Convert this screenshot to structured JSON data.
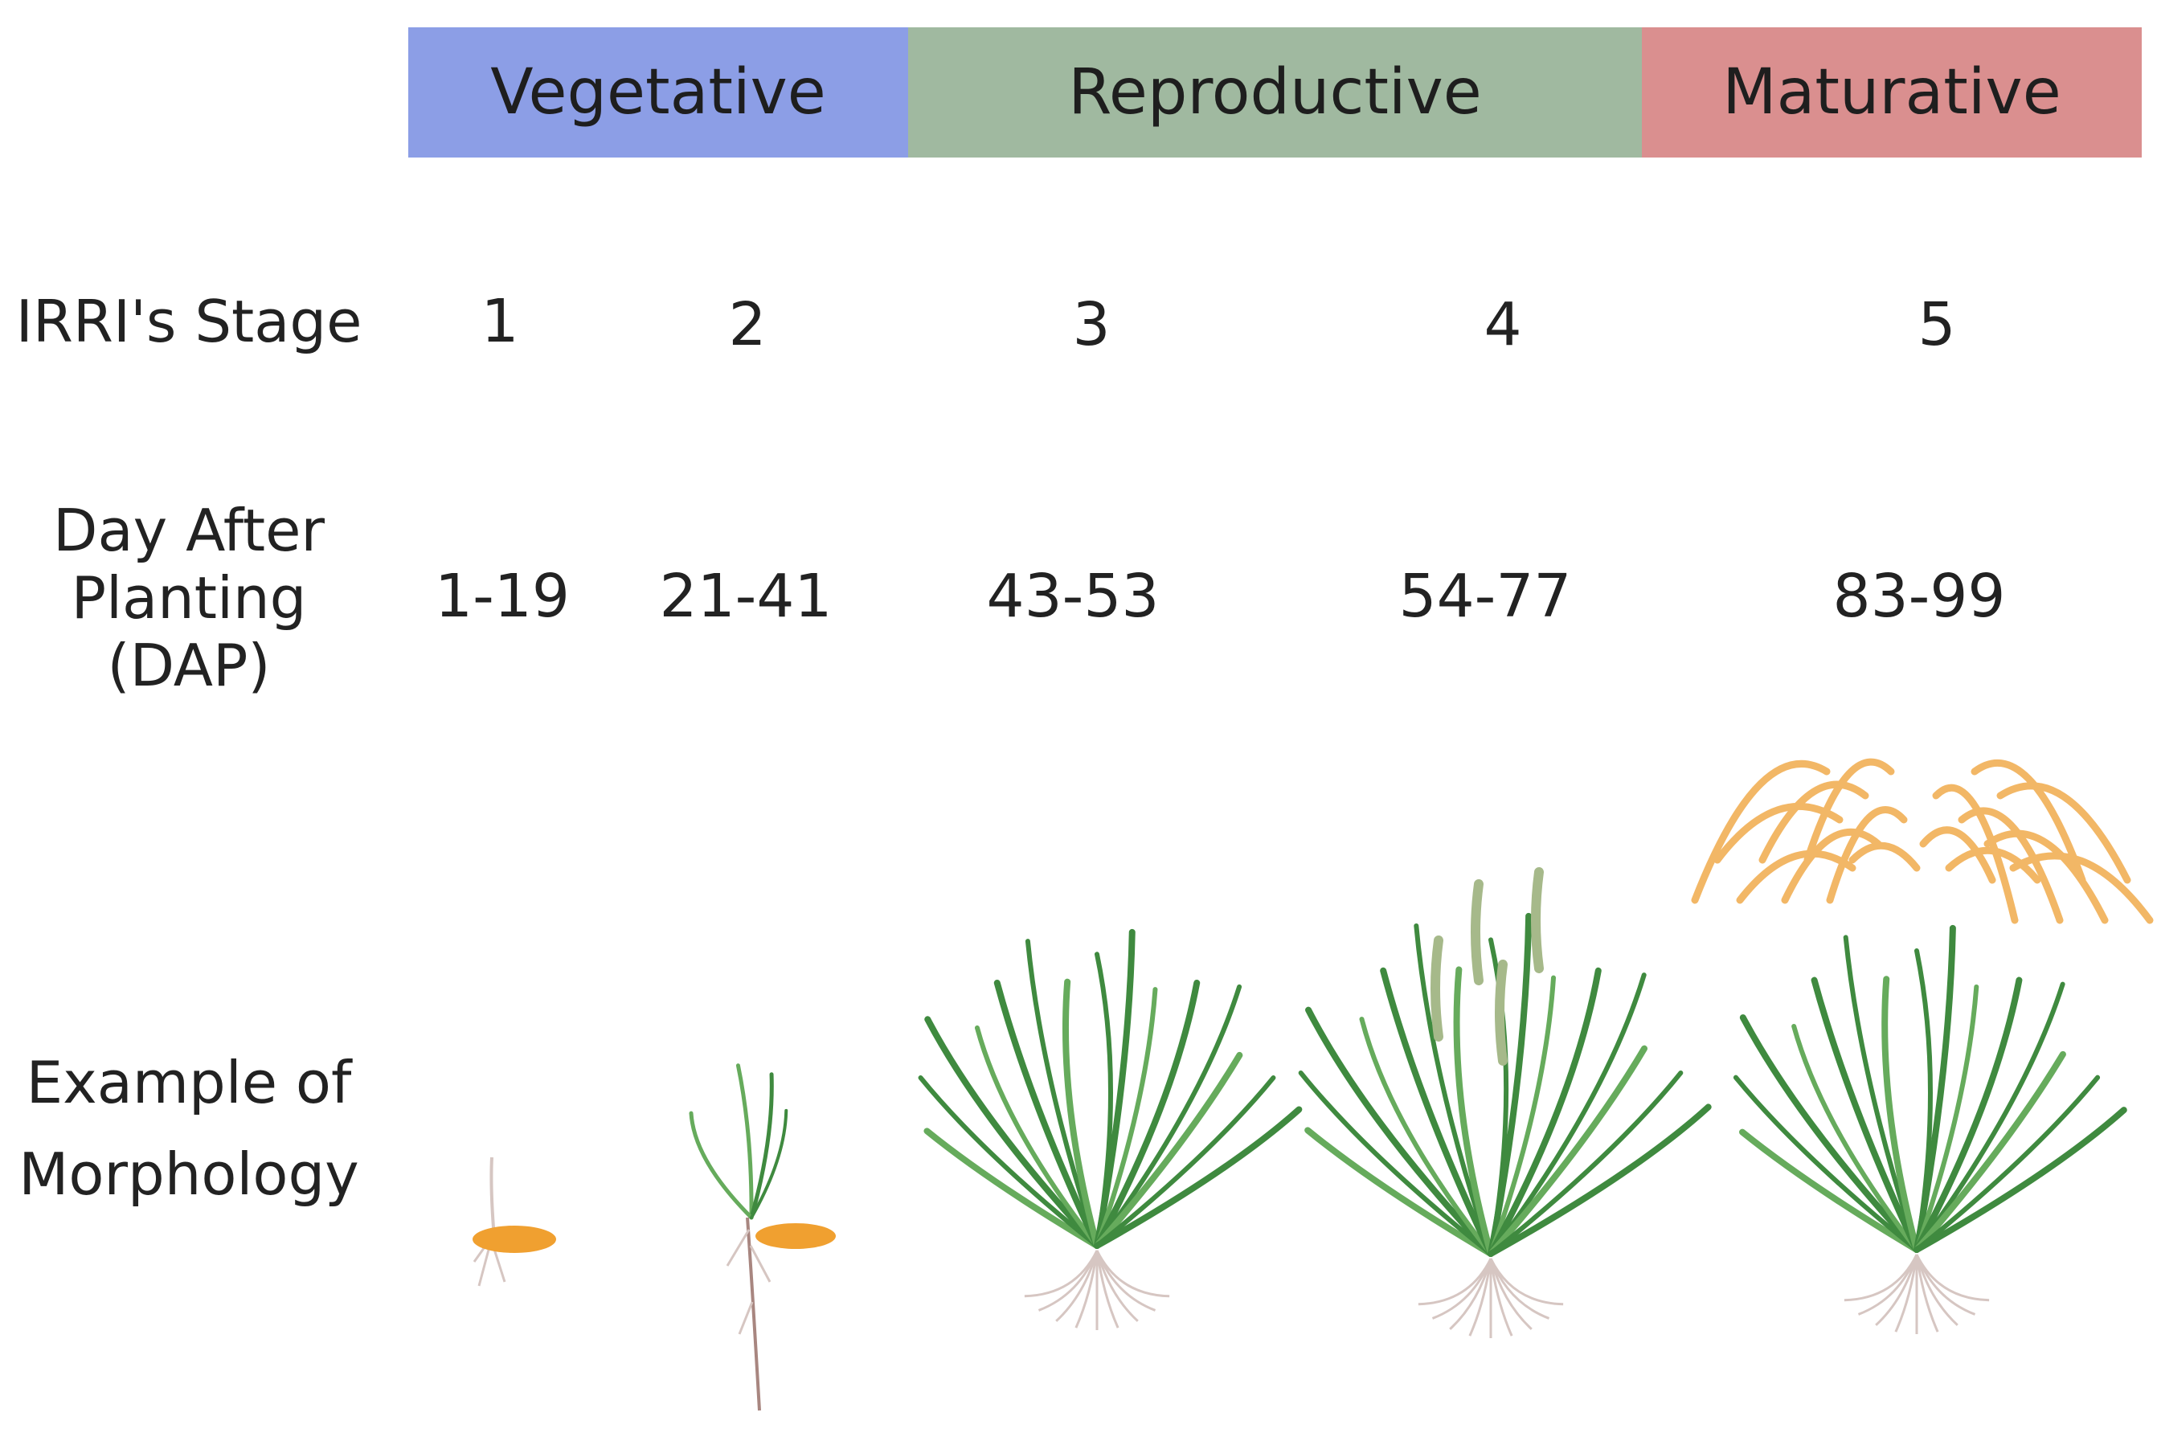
{
  "phases": [
    {
      "label": "Vegetative",
      "color": "#8c9ee6"
    },
    {
      "label": "Reproductive",
      "color": "#a0b9a0"
    },
    {
      "label": "Maturative",
      "color": "#da8f8f"
    }
  ],
  "row_labels": {
    "stage": "IRRI's Stage",
    "dap_line1": "Day After",
    "dap_line2": "Planting",
    "dap_line3": "(DAP)",
    "morph_line1": "Example of",
    "morph_line2": "Morphology"
  },
  "stages": [
    {
      "stage": "1",
      "dap": "1-19",
      "illustration": "germinating-seed-icon"
    },
    {
      "stage": "2",
      "dap": "21-41",
      "illustration": "seedling-icon"
    },
    {
      "stage": "3",
      "dap": "43-53",
      "illustration": "tillering-rice-plant-icon"
    },
    {
      "stage": "4",
      "dap": "54-77",
      "illustration": "flowering-rice-plant-icon"
    },
    {
      "stage": "5",
      "dap": "83-99",
      "illustration": "ripening-rice-plant-icon"
    }
  ],
  "colors": {
    "leaf": "#3f8a3f",
    "leaf_light": "#66ab5c",
    "seed": "#f0a030",
    "grain": "#f2b766",
    "flower": "#a6b98a",
    "root": "#d6c6c2"
  }
}
